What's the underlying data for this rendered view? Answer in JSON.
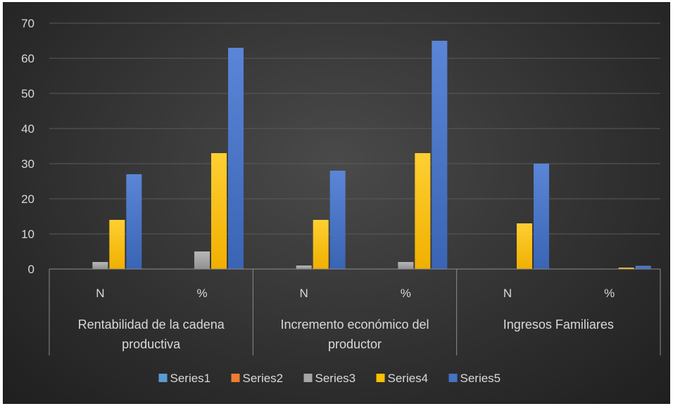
{
  "chart_data": {
    "type": "bar",
    "title": "",
    "xlabel": "",
    "ylabel": "",
    "ylim": [
      0,
      70
    ],
    "yticks": [
      0,
      10,
      20,
      30,
      40,
      50,
      60,
      70
    ],
    "grid": true,
    "legend_position": "bottom",
    "groups": [
      {
        "label_lines": [
          "Rentabilidad de la cadena",
          "productiva"
        ],
        "categories": [
          "N",
          "%"
        ]
      },
      {
        "label_lines": [
          "Incremento económico del",
          "productor"
        ],
        "categories": [
          "N",
          "%"
        ]
      },
      {
        "label_lines": [
          "Ingresos Familiares"
        ],
        "categories": [
          "N",
          "%"
        ]
      }
    ],
    "series": [
      {
        "name": "Series1",
        "color": "#5b9bd5",
        "values": [
          0,
          0,
          0,
          0,
          0,
          0
        ]
      },
      {
        "name": "Series2",
        "color": "#ed7d31",
        "values": [
          0,
          0,
          0,
          0,
          0,
          0
        ]
      },
      {
        "name": "Series3",
        "color": "#a5a5a5",
        "values": [
          2,
          5,
          1,
          2,
          0,
          0
        ]
      },
      {
        "name": "Series4",
        "color": "#ffc000",
        "values": [
          14,
          33,
          14,
          33,
          13,
          0.4
        ]
      },
      {
        "name": "Series5",
        "color": "#4472c4",
        "values": [
          27,
          63,
          28,
          65,
          30,
          0.9
        ]
      }
    ]
  }
}
